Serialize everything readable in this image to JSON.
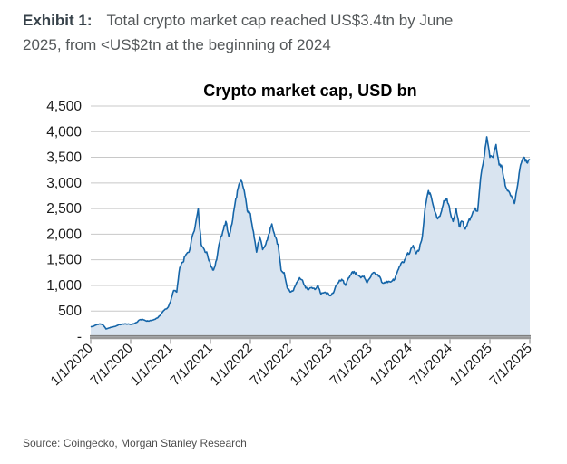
{
  "exhibit": {
    "label": "Exhibit 1:",
    "caption_line1": "Total crypto market cap reached US$3.4tn by June",
    "caption_line2": "2025, from <US$2tn at the beginning of 2024"
  },
  "source_note": "Source: Coingecko, Morgan Stanley Research",
  "colors": {
    "line": "#1565a8",
    "fill": "#d9e4f0",
    "grid": "#c8c8c8",
    "axis": "#999999",
    "axis_edge": "#7f7f7f",
    "tick_text": "#1a1a1a"
  },
  "chart_data": {
    "type": "area",
    "title": "Crypto market cap, USD bn",
    "xlabel": "",
    "ylabel": "USD bn",
    "ylim": [
      0,
      4500
    ],
    "y_tick_step": 500,
    "y_tick_labels": [
      "-",
      "500",
      "1,000",
      "1,500",
      "2,000",
      "2,500",
      "3,000",
      "3,500",
      "4,000",
      "4,500"
    ],
    "x_tick_labels": [
      "1/1/2020",
      "7/1/2020",
      "1/1/2021",
      "7/1/2021",
      "1/1/2022",
      "7/1/2022",
      "1/1/2023",
      "7/1/2023",
      "1/1/2024",
      "7/1/2024",
      "1/1/2025",
      "7/1/2025"
    ],
    "grid": true,
    "legend": "none",
    "series": [
      {
        "name": "Total crypto market cap, USD bn",
        "start_date": "1/1/2020",
        "end_date": "6/25/2025",
        "interval_days": 14,
        "values": [
          190,
          205,
          235,
          250,
          230,
          150,
          170,
          190,
          200,
          230,
          240,
          250,
          245,
          240,
          250,
          280,
          330,
          335,
          310,
          305,
          320,
          340,
          380,
          450,
          520,
          560,
          680,
          900,
          870,
          1350,
          1450,
          1600,
          1650,
          1950,
          2150,
          2500,
          1800,
          1700,
          1600,
          1400,
          1300,
          1500,
          1850,
          2050,
          2250,
          1950,
          2200,
          2600,
          2900,
          3050,
          2850,
          2450,
          2400,
          2050,
          1650,
          1950,
          1700,
          1800,
          2000,
          2200,
          1950,
          1800,
          1300,
          1250,
          950,
          870,
          900,
          1050,
          1150,
          1100,
          950,
          920,
          960,
          920,
          1000,
          830,
          860,
          850,
          800,
          850,
          1000,
          1100,
          1100,
          1000,
          1150,
          1250,
          1250,
          1200,
          1150,
          1180,
          1050,
          1150,
          1250,
          1200,
          1180,
          1050,
          1050,
          1080,
          1080,
          1120,
          1290,
          1420,
          1450,
          1600,
          1650,
          1780,
          1620,
          1700,
          1950,
          2550,
          2850,
          2700,
          2450,
          2300,
          2400,
          2650,
          2700,
          2450,
          2250,
          2500,
          2150,
          2250,
          2100,
          2250,
          2350,
          2500,
          2450,
          3100,
          3450,
          3900,
          3500,
          3500,
          3750,
          3350,
          3300,
          2950,
          2850,
          2750,
          2600,
          2950,
          3350,
          3500,
          3400,
          3450
        ]
      }
    ]
  }
}
